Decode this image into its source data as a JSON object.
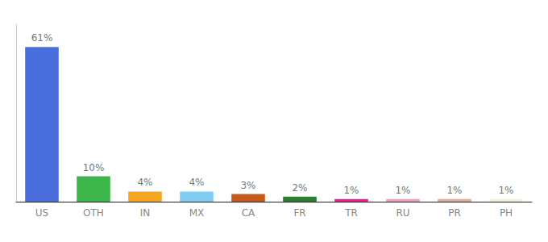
{
  "chart_data": {
    "type": "bar",
    "categories": [
      "US",
      "OTH",
      "IN",
      "MX",
      "CA",
      "FR",
      "TR",
      "RU",
      "PR",
      "PH"
    ],
    "values": [
      61,
      10,
      4,
      4,
      3,
      2,
      1,
      1,
      1,
      1
    ],
    "value_labels": [
      "61%",
      "10%",
      "4%",
      "4%",
      "3%",
      "2%",
      "1%",
      "1%",
      "1%",
      "1%"
    ],
    "colors": [
      "#4a6fdc",
      "#3cb54a",
      "#f5a623",
      "#7ecef4",
      "#c85a1a",
      "#2e7d32",
      "#ff1493",
      "#f0a0b0",
      "#e8a898",
      "#f5f0dc"
    ],
    "ylim": [
      0,
      70
    ],
    "grid": false,
    "data_labels": true,
    "tick_labels": "x"
  }
}
